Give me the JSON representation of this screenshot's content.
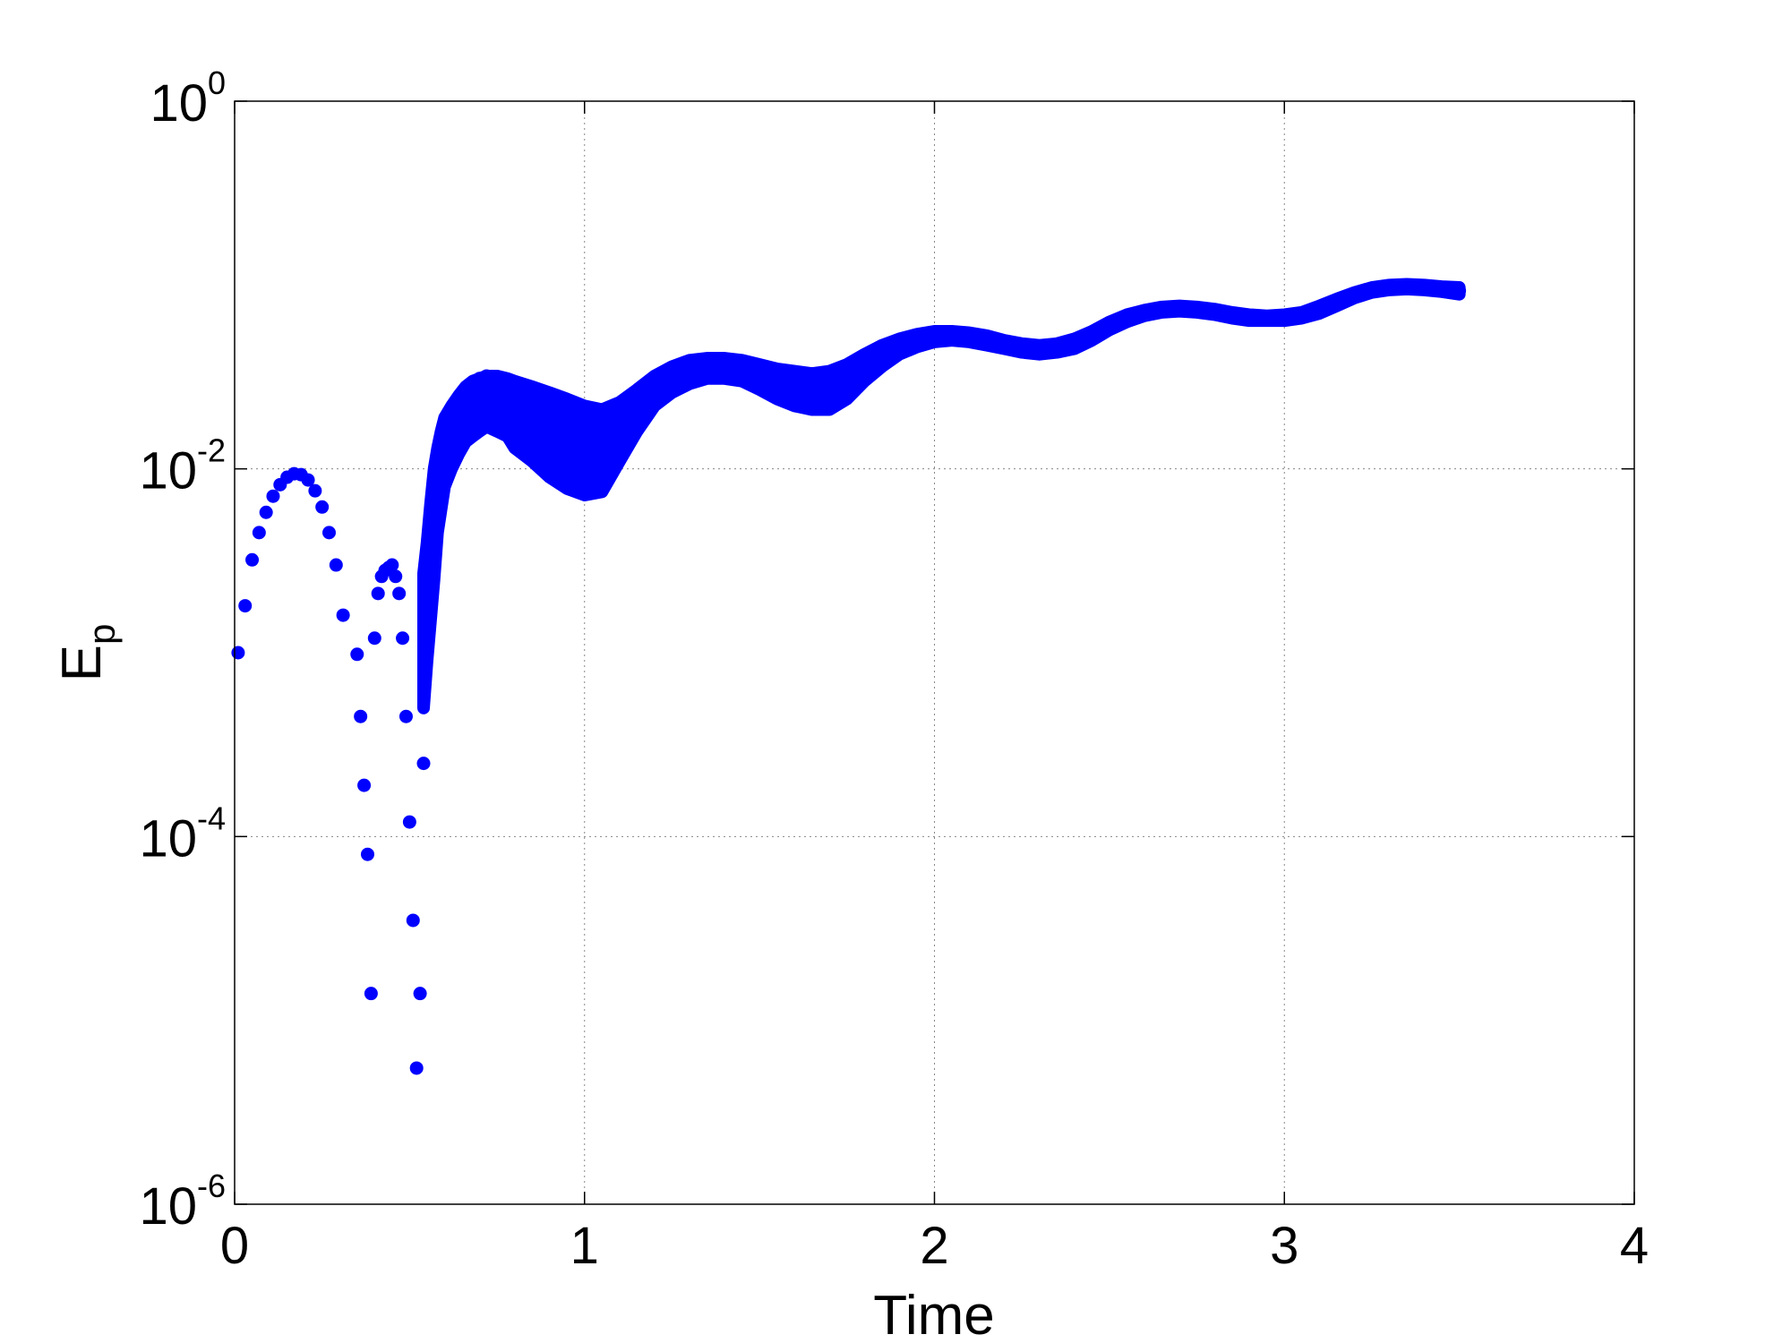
{
  "chart_data": {
    "type": "scatter",
    "xlabel": "Time",
    "ylabel": "E",
    "ylabel_subscript": "p",
    "xlim": [
      0,
      4
    ],
    "ylim": [
      1e-06,
      1
    ],
    "yscale": "log",
    "grid": true,
    "marker_color": "#0000ff",
    "x_ticks": [
      {
        "value": 0,
        "label": "0"
      },
      {
        "value": 1,
        "label": "1"
      },
      {
        "value": 2,
        "label": "2"
      },
      {
        "value": 3,
        "label": "3"
      },
      {
        "value": 4,
        "label": "4"
      }
    ],
    "y_ticks": [
      {
        "value": 1e-06,
        "base": "10",
        "exp": "-6"
      },
      {
        "value": 0.0001,
        "base": "10",
        "exp": "-4"
      },
      {
        "value": 0.01,
        "base": "10",
        "exp": "-2"
      },
      {
        "value": 1,
        "base": "10",
        "exp": "0"
      }
    ],
    "series": [
      {
        "description_points": true,
        "x": [
          0.01,
          0.03,
          0.05,
          0.07,
          0.09,
          0.11,
          0.13,
          0.15,
          0.17,
          0.19,
          0.21,
          0.23,
          0.25,
          0.27,
          0.29,
          0.31,
          0.35,
          0.36,
          0.37,
          0.38,
          0.39,
          0.4,
          0.41,
          0.42,
          0.43,
          0.44,
          0.45,
          0.46,
          0.47,
          0.48,
          0.49,
          0.5,
          0.51,
          0.52,
          0.53,
          0.54,
          0.55,
          0.56,
          0.57,
          0.58,
          0.59,
          0.6,
          0.62,
          0.64,
          0.66,
          0.68,
          0.7,
          0.72,
          0.75,
          0.78,
          0.8,
          0.85,
          0.9,
          0.95,
          1.0,
          1.05,
          1.1,
          1.15,
          1.2,
          1.25,
          1.3,
          1.35,
          1.4,
          1.45,
          1.5,
          1.55,
          1.6,
          1.65,
          1.7,
          1.75,
          1.8,
          1.85,
          1.9,
          1.95,
          2.0,
          2.05,
          2.1,
          2.15,
          2.2,
          2.25,
          2.3,
          2.35,
          2.4,
          2.45,
          2.5,
          2.55,
          2.6,
          2.65,
          2.7,
          2.75,
          2.8,
          2.85,
          2.9,
          2.95,
          3.0,
          3.05,
          3.1,
          3.15,
          3.2,
          3.25,
          3.3,
          3.35,
          3.4,
          3.45,
          3.5
        ],
        "y": [
          0.001,
          0.0018,
          0.0032,
          0.0045,
          0.0058,
          0.0071,
          0.0082,
          0.009,
          0.0094,
          0.0093,
          0.0087,
          0.0076,
          0.0062,
          0.0045,
          0.003,
          0.0016,
          0.00098,
          0.00045,
          0.00019,
          8e-05,
          1.4e-05,
          0.0012,
          0.0021,
          0.0026,
          0.0028,
          0.0029,
          0.003,
          0.0026,
          0.0021,
          0.0012,
          0.00045,
          0.00012,
          3.5e-05,
          5.5e-06,
          1.4e-05,
          0.00025,
          0.0013,
          0.0024,
          0.0045,
          0.0075,
          0.011,
          0.014,
          0.018,
          0.022,
          0.026,
          0.029,
          0.031,
          0.032,
          0.031,
          0.03,
          0.028,
          0.025,
          0.022,
          0.02,
          0.017,
          0.016,
          0.019,
          0.024,
          0.029,
          0.033,
          0.036,
          0.038,
          0.038,
          0.037,
          0.034,
          0.031,
          0.029,
          0.028,
          0.028,
          0.031,
          0.036,
          0.042,
          0.047,
          0.051,
          0.054,
          0.055,
          0.054,
          0.052,
          0.049,
          0.047,
          0.046,
          0.046,
          0.048,
          0.053,
          0.06,
          0.066,
          0.071,
          0.074,
          0.075,
          0.074,
          0.072,
          0.069,
          0.067,
          0.066,
          0.066,
          0.068,
          0.073,
          0.08,
          0.088,
          0.094,
          0.098,
          0.099,
          0.098,
          0.095,
          0.093
        ],
        "band_upper": [
          0,
          0,
          0,
          0,
          0,
          0,
          0,
          0,
          0,
          0,
          0,
          0,
          0,
          0,
          0,
          0,
          0,
          0,
          0,
          0,
          0,
          0,
          0,
          0,
          0,
          0,
          0,
          0,
          0,
          0,
          0,
          0,
          0,
          0,
          0,
          0.0027,
          0.004,
          0.0065,
          0.01,
          0.013,
          0.016,
          0.019,
          0.022,
          0.025,
          0.028,
          0.03,
          0.031,
          0.032,
          0.032,
          0.031,
          0.03,
          0.028,
          0.026,
          0.024,
          0.022,
          0.021,
          0.023,
          0.027,
          0.032,
          0.036,
          0.039,
          0.04,
          0.04,
          0.039,
          0.037,
          0.035,
          0.034,
          0.033,
          0.034,
          0.037,
          0.042,
          0.047,
          0.051,
          0.054,
          0.056,
          0.056,
          0.055,
          0.053,
          0.05,
          0.048,
          0.047,
          0.048,
          0.051,
          0.056,
          0.063,
          0.069,
          0.073,
          0.076,
          0.077,
          0.076,
          0.074,
          0.071,
          0.069,
          0.068,
          0.069,
          0.071,
          0.077,
          0.084,
          0.091,
          0.097,
          0.1,
          0.101,
          0.1,
          0.098,
          0.097
        ],
        "band_lower": [
          0,
          0,
          0,
          0,
          0,
          0,
          0,
          0,
          0,
          0,
          0,
          0,
          0,
          0,
          0,
          0,
          0,
          0,
          0,
          0,
          0,
          0,
          0,
          0,
          0,
          0,
          0,
          0,
          0,
          0,
          0,
          0,
          0,
          0,
          0,
          0.0005,
          0.0009,
          0.0015,
          0.0025,
          0.0045,
          0.006,
          0.008,
          0.01,
          0.012,
          0.014,
          0.015,
          0.016,
          0.017,
          0.016,
          0.015,
          0.013,
          0.011,
          0.009,
          0.0078,
          0.0072,
          0.0075,
          0.011,
          0.016,
          0.022,
          0.026,
          0.029,
          0.031,
          0.031,
          0.03,
          0.027,
          0.024,
          0.022,
          0.021,
          0.021,
          0.024,
          0.03,
          0.036,
          0.042,
          0.046,
          0.049,
          0.05,
          0.049,
          0.047,
          0.045,
          0.043,
          0.042,
          0.043,
          0.045,
          0.05,
          0.057,
          0.063,
          0.068,
          0.071,
          0.072,
          0.071,
          0.069,
          0.066,
          0.064,
          0.064,
          0.064,
          0.066,
          0.07,
          0.077,
          0.085,
          0.091,
          0.094,
          0.095,
          0.094,
          0.092,
          0.089
        ]
      }
    ]
  }
}
